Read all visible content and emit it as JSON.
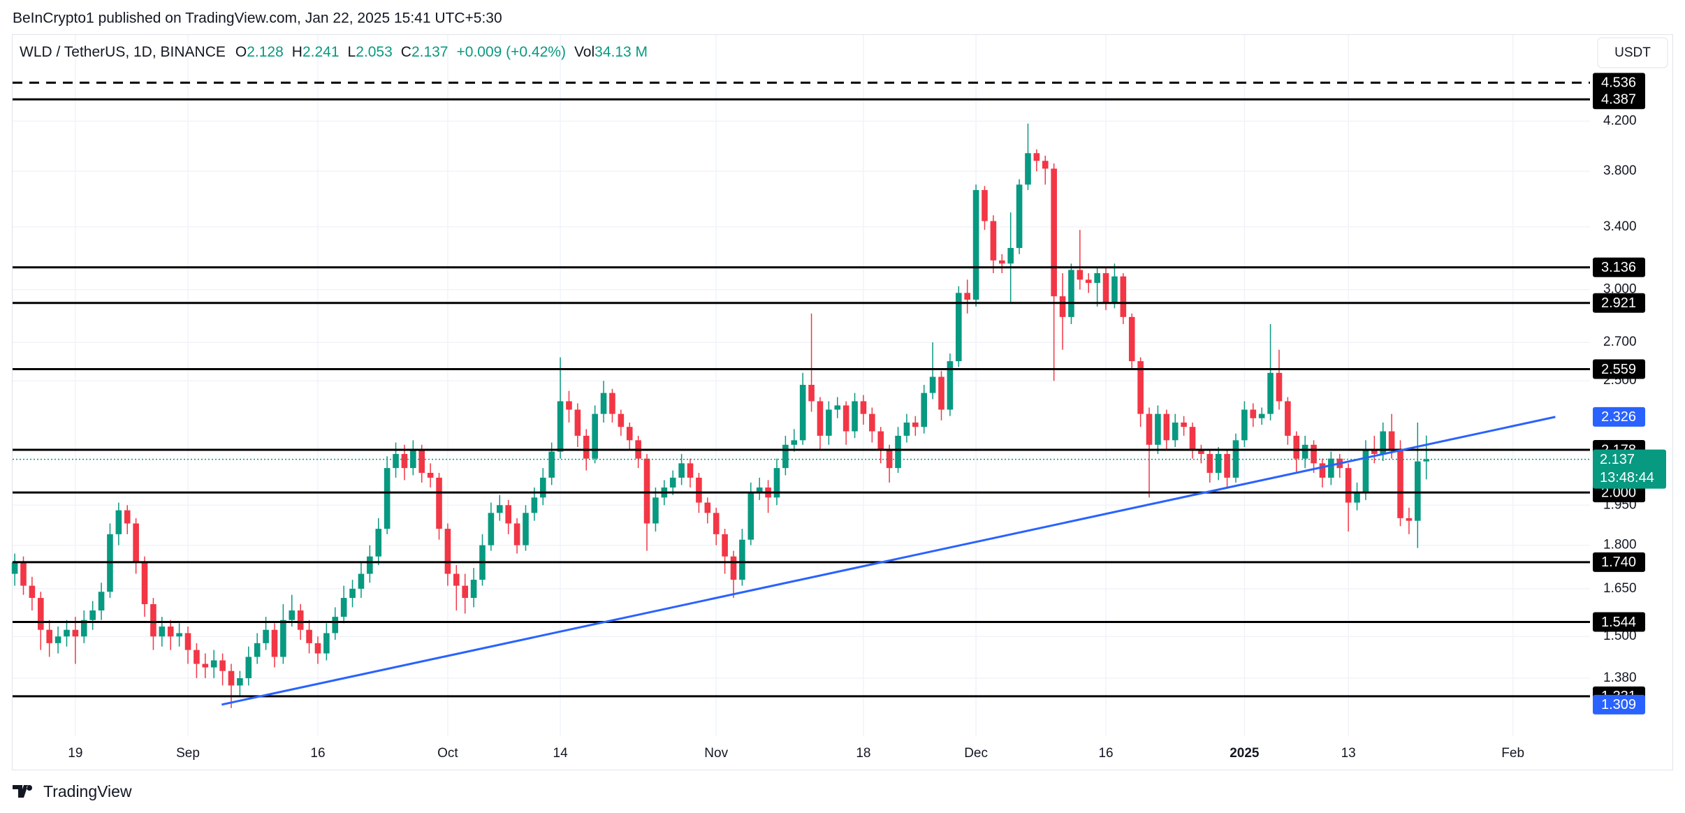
{
  "chart_data": {
    "type": "candlestick",
    "subtitle": "BeInCrypto1 published on TradingView.com, Jan 22, 2025 15:41 UTC+5:30",
    "title": "WLD / TetherUS, 1D, BINANCE",
    "ohlc_labels": [
      "O",
      "H",
      "L",
      "C"
    ],
    "change": "+0.009 (+0.42%)",
    "volume_label": "Vol",
    "volume": "34.13 M",
    "currency": "USDT",
    "brand": "TradingView",
    "countdown": "13:48:44",
    "log_scale": true,
    "grid": true,
    "up_color": "#089981",
    "down_color": "#f23645",
    "xlim": [
      -0.25,
      181.9
    ],
    "ylim": [
      1.229,
      4.99
    ],
    "xticks": [
      {
        "value": 7,
        "label": "19"
      },
      {
        "value": 20,
        "label": "Sep"
      },
      {
        "value": 35,
        "label": "16"
      },
      {
        "value": 50,
        "label": "Oct"
      },
      {
        "value": 63,
        "label": "14"
      },
      {
        "value": 81,
        "label": "Nov"
      },
      {
        "value": 98,
        "label": "18"
      },
      {
        "value": 111,
        "label": "Dec"
      },
      {
        "value": 126,
        "label": "16"
      },
      {
        "value": 142,
        "label": "2025",
        "bold": true
      },
      {
        "value": 154,
        "label": "13"
      },
      {
        "value": 173,
        "label": "Feb"
      }
    ],
    "yticks": [
      {
        "value": 1.38,
        "label": "1.380"
      },
      {
        "value": 1.5,
        "label": "1.500"
      },
      {
        "value": 1.65,
        "label": "1.650"
      },
      {
        "value": 1.8,
        "label": "1.800"
      },
      {
        "value": 1.95,
        "label": "1.950"
      },
      {
        "value": 2.5,
        "label": "2.500"
      },
      {
        "value": 2.7,
        "label": "2.700"
      },
      {
        "value": 3,
        "label": "3.000"
      },
      {
        "value": 3.4,
        "label": "3.400"
      },
      {
        "value": 3.8,
        "label": "3.800"
      },
      {
        "value": 4.2,
        "label": "4.200"
      }
    ],
    "levels": [
      {
        "value": 4.536,
        "dashed": true
      },
      {
        "value": 4.387
      },
      {
        "value": 3.136
      },
      {
        "value": 2.921
      },
      {
        "value": 2.559
      },
      {
        "value": 2.178
      },
      {
        "value": 2,
        "label": "2.000"
      },
      {
        "value": 1.74,
        "label": "1.740"
      },
      {
        "value": 1.544
      },
      {
        "value": 1.331
      }
    ],
    "trendline": {
      "color": "#2962ff",
      "x": [
        23.9,
        177.9
      ],
      "values": [
        1.309,
        2.326
      ]
    },
    "ohlc": [
      [
        1.7,
        1.77,
        1.66,
        1.74
      ],
      [
        1.74,
        1.76,
        1.63,
        1.66
      ],
      [
        1.66,
        1.69,
        1.58,
        1.62
      ],
      [
        1.62,
        1.64,
        1.46,
        1.52
      ],
      [
        1.52,
        1.55,
        1.44,
        1.48
      ],
      [
        1.48,
        1.53,
        1.45,
        1.5
      ],
      [
        1.5,
        1.55,
        1.47,
        1.52
      ],
      [
        1.52,
        1.56,
        1.42,
        1.5
      ],
      [
        1.5,
        1.58,
        1.48,
        1.55
      ],
      [
        1.55,
        1.61,
        1.52,
        1.58
      ],
      [
        1.58,
        1.67,
        1.55,
        1.64
      ],
      [
        1.64,
        1.88,
        1.62,
        1.84
      ],
      [
        1.84,
        1.96,
        1.8,
        1.93
      ],
      [
        1.93,
        1.95,
        1.84,
        1.88
      ],
      [
        1.88,
        1.9,
        1.7,
        1.74
      ],
      [
        1.74,
        1.76,
        1.56,
        1.6
      ],
      [
        1.6,
        1.62,
        1.46,
        1.5
      ],
      [
        1.5,
        1.56,
        1.47,
        1.53
      ],
      [
        1.53,
        1.55,
        1.46,
        1.5
      ],
      [
        1.5,
        1.54,
        1.47,
        1.51
      ],
      [
        1.51,
        1.53,
        1.42,
        1.46
      ],
      [
        1.46,
        1.48,
        1.38,
        1.42
      ],
      [
        1.42,
        1.45,
        1.38,
        1.41
      ],
      [
        1.41,
        1.46,
        1.38,
        1.43
      ],
      [
        1.43,
        1.45,
        1.36,
        1.4
      ],
      [
        1.4,
        1.42,
        1.3,
        1.36
      ],
      [
        1.36,
        1.4,
        1.33,
        1.38
      ],
      [
        1.38,
        1.47,
        1.36,
        1.44
      ],
      [
        1.44,
        1.51,
        1.42,
        1.48
      ],
      [
        1.48,
        1.56,
        1.46,
        1.52
      ],
      [
        1.52,
        1.54,
        1.41,
        1.44
      ],
      [
        1.44,
        1.6,
        1.42,
        1.55
      ],
      [
        1.55,
        1.63,
        1.53,
        1.58
      ],
      [
        1.58,
        1.6,
        1.49,
        1.52
      ],
      [
        1.52,
        1.55,
        1.45,
        1.48
      ],
      [
        1.48,
        1.5,
        1.42,
        1.45
      ],
      [
        1.45,
        1.54,
        1.43,
        1.51
      ],
      [
        1.51,
        1.59,
        1.49,
        1.56
      ],
      [
        1.56,
        1.66,
        1.54,
        1.62
      ],
      [
        1.62,
        1.68,
        1.59,
        1.65
      ],
      [
        1.65,
        1.74,
        1.62,
        1.7
      ],
      [
        1.7,
        1.8,
        1.67,
        1.76
      ],
      [
        1.76,
        1.9,
        1.73,
        1.86
      ],
      [
        1.86,
        2.15,
        1.84,
        2.1
      ],
      [
        2.1,
        2.21,
        2.06,
        2.16
      ],
      [
        2.16,
        2.2,
        2.05,
        2.1
      ],
      [
        2.1,
        2.22,
        2.07,
        2.18
      ],
      [
        2.18,
        2.2,
        2.04,
        2.08
      ],
      [
        2.08,
        2.12,
        2.02,
        2.06
      ],
      [
        2.06,
        2.08,
        1.82,
        1.86
      ],
      [
        1.86,
        1.88,
        1.66,
        1.7
      ],
      [
        1.7,
        1.73,
        1.58,
        1.66
      ],
      [
        1.66,
        1.7,
        1.57,
        1.62
      ],
      [
        1.62,
        1.72,
        1.59,
        1.68
      ],
      [
        1.68,
        1.84,
        1.66,
        1.8
      ],
      [
        1.8,
        1.96,
        1.78,
        1.92
      ],
      [
        1.92,
        1.99,
        1.89,
        1.95
      ],
      [
        1.95,
        1.97,
        1.84,
        1.88
      ],
      [
        1.88,
        1.9,
        1.77,
        1.8
      ],
      [
        1.8,
        1.95,
        1.78,
        1.92
      ],
      [
        1.92,
        2.02,
        1.89,
        1.98
      ],
      [
        1.98,
        2.1,
        1.95,
        2.06
      ],
      [
        2.06,
        2.21,
        2.03,
        2.17
      ],
      [
        2.17,
        2.62,
        2.14,
        2.4
      ],
      [
        2.4,
        2.45,
        2.3,
        2.36
      ],
      [
        2.36,
        2.39,
        2.19,
        2.24
      ],
      [
        2.24,
        2.27,
        2.09,
        2.14
      ],
      [
        2.14,
        2.38,
        2.12,
        2.34
      ],
      [
        2.34,
        2.5,
        2.3,
        2.44
      ],
      [
        2.44,
        2.46,
        2.3,
        2.34
      ],
      [
        2.34,
        2.36,
        2.24,
        2.28
      ],
      [
        2.28,
        2.3,
        2.18,
        2.22
      ],
      [
        2.22,
        2.24,
        2.1,
        2.14
      ],
      [
        2.14,
        2.16,
        1.78,
        1.88
      ],
      [
        1.88,
        2.02,
        1.85,
        1.98
      ],
      [
        1.98,
        2.05,
        1.95,
        2.02
      ],
      [
        2.02,
        2.09,
        1.99,
        2.06
      ],
      [
        2.06,
        2.16,
        2.03,
        2.12
      ],
      [
        2.12,
        2.14,
        2.02,
        2.06
      ],
      [
        2.06,
        2.08,
        1.92,
        1.96
      ],
      [
        1.96,
        1.98,
        1.88,
        1.92
      ],
      [
        1.92,
        1.94,
        1.8,
        1.84
      ],
      [
        1.84,
        1.86,
        1.7,
        1.76
      ],
      [
        1.76,
        1.78,
        1.62,
        1.68
      ],
      [
        1.68,
        1.86,
        1.66,
        1.82
      ],
      [
        1.82,
        2.04,
        1.8,
        2.0
      ],
      [
        2.0,
        2.06,
        1.97,
        2.02
      ],
      [
        2.02,
        2.05,
        1.92,
        1.98
      ],
      [
        1.98,
        2.14,
        1.95,
        2.1
      ],
      [
        2.1,
        2.24,
        2.07,
        2.2
      ],
      [
        2.2,
        2.27,
        2.17,
        2.22
      ],
      [
        2.22,
        2.54,
        2.2,
        2.48
      ],
      [
        2.48,
        2.86,
        2.35,
        2.4
      ],
      [
        2.4,
        2.42,
        2.18,
        2.24
      ],
      [
        2.24,
        2.4,
        2.2,
        2.36
      ],
      [
        2.36,
        2.42,
        2.32,
        2.38
      ],
      [
        2.38,
        2.4,
        2.2,
        2.26
      ],
      [
        2.26,
        2.44,
        2.23,
        2.4
      ],
      [
        2.4,
        2.43,
        2.29,
        2.34
      ],
      [
        2.34,
        2.37,
        2.21,
        2.26
      ],
      [
        2.26,
        2.28,
        2.12,
        2.18
      ],
      [
        2.18,
        2.2,
        2.04,
        2.1
      ],
      [
        2.1,
        2.28,
        2.08,
        2.24
      ],
      [
        2.24,
        2.34,
        2.21,
        2.3
      ],
      [
        2.3,
        2.33,
        2.24,
        2.28
      ],
      [
        2.28,
        2.48,
        2.25,
        2.44
      ],
      [
        2.44,
        2.7,
        2.41,
        2.52
      ],
      [
        2.52,
        2.55,
        2.31,
        2.36
      ],
      [
        2.36,
        2.64,
        2.33,
        2.6
      ],
      [
        2.6,
        3.02,
        2.57,
        2.98
      ],
      [
        2.98,
        3.06,
        2.86,
        2.94
      ],
      [
        2.94,
        3.7,
        2.9,
        3.66
      ],
      [
        3.66,
        3.69,
        3.38,
        3.44
      ],
      [
        3.44,
        3.48,
        3.1,
        3.18
      ],
      [
        3.18,
        3.22,
        3.1,
        3.16
      ],
      [
        3.16,
        3.5,
        2.92,
        3.26
      ],
      [
        3.26,
        3.74,
        3.22,
        3.7
      ],
      [
        3.7,
        4.18,
        3.66,
        3.94
      ],
      [
        3.94,
        3.97,
        3.8,
        3.88
      ],
      [
        3.88,
        3.92,
        3.7,
        3.82
      ],
      [
        3.82,
        3.86,
        2.5,
        2.96
      ],
      [
        2.96,
        3.1,
        2.66,
        2.84
      ],
      [
        2.84,
        3.16,
        2.8,
        3.12
      ],
      [
        3.12,
        3.38,
        3.0,
        3.06
      ],
      [
        3.06,
        3.1,
        2.98,
        3.04
      ],
      [
        3.04,
        3.14,
        2.9,
        3.1
      ],
      [
        3.1,
        3.14,
        2.88,
        2.92
      ],
      [
        2.92,
        3.16,
        2.89,
        3.08
      ],
      [
        3.08,
        3.1,
        2.8,
        2.84
      ],
      [
        2.84,
        2.86,
        2.56,
        2.6
      ],
      [
        2.6,
        2.62,
        2.28,
        2.34
      ],
      [
        2.34,
        2.37,
        1.98,
        2.2
      ],
      [
        2.2,
        2.38,
        2.16,
        2.34
      ],
      [
        2.34,
        2.36,
        2.18,
        2.22
      ],
      [
        2.22,
        2.34,
        2.19,
        2.3
      ],
      [
        2.3,
        2.33,
        2.24,
        2.28
      ],
      [
        2.28,
        2.3,
        2.14,
        2.18
      ],
      [
        2.18,
        2.2,
        2.12,
        2.16
      ],
      [
        2.16,
        2.18,
        2.04,
        2.08
      ],
      [
        2.08,
        2.19,
        2.05,
        2.16
      ],
      [
        2.16,
        2.18,
        2.02,
        2.06
      ],
      [
        2.06,
        2.25,
        2.04,
        2.22
      ],
      [
        2.22,
        2.4,
        2.19,
        2.36
      ],
      [
        2.36,
        2.39,
        2.28,
        2.32
      ],
      [
        2.32,
        2.37,
        2.29,
        2.34
      ],
      [
        2.34,
        2.8,
        2.31,
        2.54
      ],
      [
        2.54,
        2.66,
        2.36,
        2.4
      ],
      [
        2.4,
        2.42,
        2.2,
        2.24
      ],
      [
        2.24,
        2.26,
        2.08,
        2.14
      ],
      [
        2.14,
        2.24,
        2.1,
        2.2
      ],
      [
        2.2,
        2.22,
        2.08,
        2.12
      ],
      [
        2.12,
        2.14,
        2.02,
        2.06
      ],
      [
        2.06,
        2.17,
        2.03,
        2.14
      ],
      [
        2.14,
        2.16,
        2.06,
        2.1
      ],
      [
        2.1,
        2.12,
        1.85,
        1.96
      ],
      [
        1.96,
        2.04,
        1.93,
        2.0
      ],
      [
        2.0,
        2.22,
        1.97,
        2.18
      ],
      [
        2.18,
        2.24,
        2.12,
        2.16
      ],
      [
        2.16,
        2.3,
        2.13,
        2.26
      ],
      [
        2.26,
        2.34,
        2.14,
        2.18
      ],
      [
        2.18,
        2.22,
        1.87,
        1.9
      ],
      [
        1.9,
        1.94,
        1.84,
        1.89
      ],
      [
        1.89,
        2.3,
        1.79,
        2.128
      ],
      [
        2.128,
        2.241,
        2.053,
        2.137
      ]
    ]
  }
}
